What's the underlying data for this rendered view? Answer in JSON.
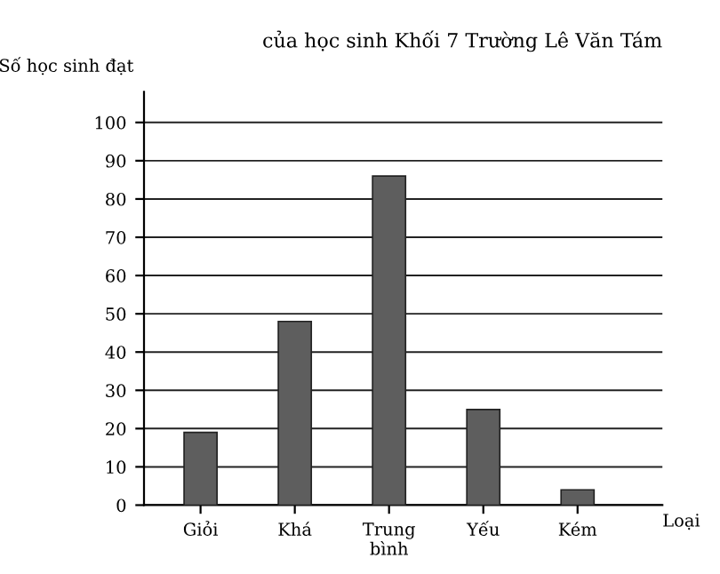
{
  "chart_data": {
    "type": "bar",
    "title": "của học sinh Khối 7 Trường Lê Văn Tám",
    "xlabel": "Loại",
    "ylabel": "Số học sinh đạt",
    "categories": [
      "Giỏi",
      "Khá",
      "Trung\nbình",
      "Yếu",
      "Kém"
    ],
    "values": [
      19,
      48,
      86,
      25,
      4
    ],
    "color": "#5e5e5e",
    "ylim": [
      0,
      108
    ],
    "yticks": [
      0,
      10,
      20,
      30,
      40,
      50,
      60,
      70,
      80,
      90,
      100
    ],
    "grid": "y"
  }
}
